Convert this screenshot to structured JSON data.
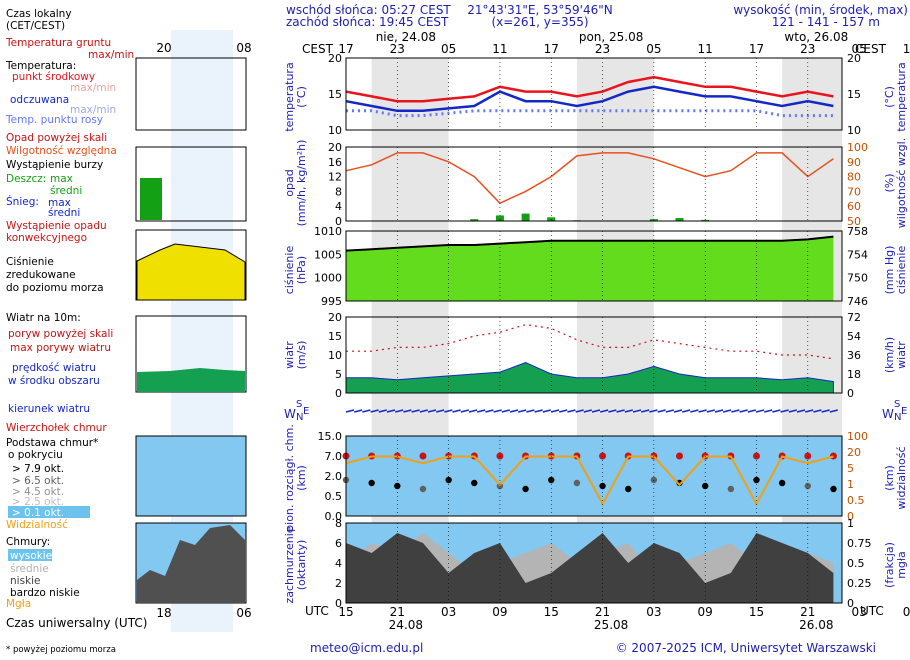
{
  "header": {
    "sunrise": "wschód słońca: 05:27 CEST",
    "sunset": "zachód słońca: 19:45 CEST",
    "coords": "21°43'31\"E, 53°59'46\"N",
    "grid": "(x=261, y=355)",
    "elev_label": "wysokość (min, środek, max)",
    "elev_values": "121 - 141 - 157 m"
  },
  "left_legend": {
    "local_time": "Czas lokalny",
    "local_time_sub": "(CET/CEST)",
    "left_hours": [
      "20",
      "02",
      "08"
    ],
    "soil_temp": "Temperatura gruntu",
    "soil_temp_sub": "max/min",
    "temperature": "Temperatura:",
    "mid_point": "punkt środkowy",
    "mid_minmax": "max/min",
    "felt": "odczuwana",
    "felt_minmax": "max/min",
    "dew": "Temp. punktu rosy",
    "precip_above": "Opad powyżej skali",
    "humidity": "Wilgotność względna",
    "storm": "Wystąpienie burzy",
    "rain": "Deszcz:",
    "rain_max": "max",
    "rain_mid": "średni",
    "snow": "Śnieg:",
    "snow_max": "max",
    "snow_mid": "średni",
    "conv1": "Wystąpienie opadu",
    "conv2": "konwekcyjnego",
    "pressure1": "Ciśnienie",
    "pressure2": "zredukowane",
    "pressure3": "do poziomu morza",
    "wind": "Wiatr na 10m:",
    "gust_above": "poryw powyżej skali",
    "gust_max": "max porywy wiatru",
    "speed1": "prędkość wiatru",
    "speed2": "w środku obszaru",
    "direction": "kierunek wiatru",
    "cb_top": "Wierzchołek chmur",
    "cloud_base1": "Podstawa chmur*",
    "cloud_base2": "o pokryciu",
    "ok79": "> 7.9 okt.",
    "ok65": "> 6.5 okt.",
    "ok45": "> 4.5 okt.",
    "ok25": "> 2.5 okt.",
    "ok01": "> 0.1 okt.",
    "visibility": "Widzialność",
    "clouds": "Chmury:",
    "high": "wysokie",
    "mid": "średnie",
    "low": "niskie",
    "vlow": "bardzo niskie",
    "fog": "Mgła",
    "utc": "Czas uniwersalny (UTC)",
    "utc_hours": [
      "18",
      "00",
      "06"
    ],
    "footnote": "* powyżej poziomu morza"
  },
  "axis_titles": {
    "temp_l1": "temperatura",
    "temp_l2": "(°C)",
    "temp_r": "(°C)",
    "temp_r2": "temperatura",
    "precip_l1": "opad",
    "precip_l2": "(mm/h, kg/m²h)",
    "precip_r1": "(%)",
    "precip_r2": "wilgotność wzgl.",
    "pres_l1": "ciśnienie",
    "pres_l2": "(hPa)",
    "pres_r1": "(mm Hg)",
    "pres_r2": "ciśnienie",
    "wind_l1": "wiatr",
    "wind_l2": "(m/s)",
    "wind_r1": "(km/h)",
    "wind_r2": "wiatr",
    "cloud_l1": "pion. rozciągł. chm.",
    "cloud_l2": "(km)",
    "cloud_r1": "(km)",
    "cloud_r2": "widzialność",
    "cov_l1": "zachmurzenie",
    "cov_l2": "(oktanty)",
    "cov_r1": "(frakcja)",
    "cov_r2": "mgła",
    "cest": "CEST",
    "utc": "UTC",
    "compass_w": "W",
    "compass_s": "S",
    "compass_n": "N",
    "compass_e": "E"
  },
  "days_top": [
    "nie, 24.08",
    "pon, 25.08",
    "wto, 26.08"
  ],
  "hours_top": [
    "17",
    "23",
    "05",
    "11",
    "17",
    "23",
    "05",
    "11",
    "17",
    "23",
    "05",
    "11",
    "17"
  ],
  "hours_bottom": [
    "15",
    "21",
    "03",
    "09",
    "15",
    "21",
    "03",
    "09",
    "15",
    "21",
    "03",
    "09",
    "15"
  ],
  "days_bottom": [
    "24.08",
    "25.08",
    "26.08"
  ],
  "footer": {
    "email": "meteo@icm.edu.pl",
    "copyright": "© 2007-2025 ICM, Uniwersytet Warszawski"
  },
  "colors": {
    "temperature": "#e8141e",
    "felt": "#1428c8",
    "dew": "#6478ff",
    "humidity": "#e8501e",
    "rain": "#14a014",
    "pressure_fill": "#64dc1e",
    "pressure_line": "#000000",
    "wind_fill": "#14a050",
    "gust": "#c81414",
    "night_band": "#e6e6e6",
    "cloud_bg": "#82c8f0",
    "visibility": "#f0a014",
    "title_blue": "#1e1eb4",
    "title_red": "#c81414"
  },
  "chart_data": [
    {
      "type": "line",
      "title": "temperatura",
      "ylabel": "(°C)",
      "ylim": [
        5,
        20
      ],
      "x_hours_utc": [
        15,
        18,
        21,
        24,
        27,
        30,
        33,
        36,
        39,
        42,
        45,
        48,
        51,
        54,
        57,
        60,
        63,
        66,
        69,
        72
      ],
      "series": [
        {
          "name": "punkt środkowy",
          "values": [
            13,
            12,
            11,
            11,
            11.5,
            12,
            14,
            13,
            13,
            12,
            13,
            15,
            16,
            15,
            14,
            14,
            13,
            12,
            13,
            12
          ]
        },
        {
          "name": "odczuwana",
          "values": [
            11,
            10,
            9,
            9,
            9.5,
            10,
            13,
            11,
            11,
            10,
            11,
            13,
            14,
            13,
            12,
            12,
            11,
            10,
            11,
            10
          ]
        },
        {
          "name": "Temp. punktu rosy",
          "values": [
            9,
            9,
            8,
            8,
            8.5,
            9,
            9,
            9,
            9,
            9,
            9,
            9,
            9,
            9,
            9,
            9,
            9,
            8,
            8,
            8
          ]
        }
      ],
      "right_ticks": [
        "10",
        "15",
        "20"
      ]
    },
    {
      "type": "line",
      "title": "opad",
      "ylabel": "(mm/h, kg/m²h)",
      "ylim": [
        0,
        20
      ],
      "y2lim": [
        50,
        100
      ],
      "y2label": "(%)",
      "series": [
        {
          "name": "Wilgotność względna",
          "values": [
            84,
            88,
            96,
            96,
            90,
            80,
            62,
            70,
            80,
            94,
            96,
            96,
            92,
            86,
            80,
            84,
            96,
            96,
            80,
            92
          ]
        },
        {
          "name": "Deszcz: średni",
          "values": [
            0,
            0,
            0,
            0,
            0,
            0.5,
            1.5,
            2,
            1,
            0.2,
            0,
            0,
            0.5,
            0.8,
            0.3,
            0,
            0,
            0,
            0,
            0
          ]
        }
      ],
      "right_ticks": [
        "50",
        "60",
        "70",
        "80",
        "90",
        "100"
      ]
    },
    {
      "type": "area",
      "title": "ciśnienie",
      "ylabel": "(hPa)",
      "ylim": [
        995,
        1020
      ],
      "y2label": "(mm Hg)",
      "right_ticks": [
        "746",
        "750",
        "754",
        "758"
      ],
      "series": [
        {
          "name": "Ciśnienie zredukowane do poziomu morza",
          "values": [
            1013,
            1013.5,
            1014,
            1014.5,
            1015,
            1015,
            1015.5,
            1016,
            1016.5,
            1016.5,
            1016.5,
            1016.5,
            1016.5,
            1016.5,
            1016.5,
            1016.5,
            1016.5,
            1016.5,
            1017,
            1018
          ]
        }
      ]
    },
    {
      "type": "area",
      "title": "wiatr",
      "ylabel": "(m/s)",
      "ylim": [
        0,
        20
      ],
      "y2label": "(km/h)",
      "right_ticks": [
        "0",
        "18",
        "36",
        "54",
        "72"
      ],
      "series": [
        {
          "name": "prędkość wiatru",
          "values": [
            4,
            4,
            3.5,
            4,
            4.5,
            5,
            5.5,
            8,
            5,
            4,
            4,
            5,
            7,
            5,
            4,
            4,
            4,
            3.5,
            4,
            3
          ]
        },
        {
          "name": "max porywy wiatru",
          "values": [
            11,
            11,
            12,
            12,
            13,
            15,
            16,
            18,
            17,
            14,
            12,
            12,
            14,
            13,
            12,
            11,
            11,
            10,
            10,
            9
          ]
        }
      ]
    },
    {
      "type": "scatter",
      "title": "pion. rozciągł. chm.",
      "ylabel": "(km)",
      "left_ticks": [
        "0.0",
        "0.5",
        "2.0",
        "7.0",
        "15.0"
      ],
      "right_ticks": [
        "0",
        "0.5",
        "1",
        "5",
        "20",
        "100"
      ],
      "series": [
        {
          "name": "Podstawa chmur > 7.9 okt.",
          "values": [
            7.5,
            7.5,
            7.5,
            7.5,
            7.5,
            7.5,
            7.5,
            7.5,
            7.5,
            7.5,
            7.5,
            7.5,
            7.5,
            7.5,
            7.5,
            7.5,
            7.5,
            7.5,
            7.5,
            7.5
          ]
        },
        {
          "name": "Widzialność",
          "values": [
            20,
            30,
            30,
            20,
            30,
            30,
            5,
            30,
            30,
            30,
            1,
            30,
            30,
            5,
            30,
            30,
            1,
            30,
            20,
            30
          ]
        }
      ]
    },
    {
      "type": "area",
      "title": "zachmurzenie",
      "ylabel": "(oktanty)",
      "ylim": [
        0,
        8
      ],
      "y2label": "(frakcja)",
      "right_ticks": [
        "0",
        "0.25",
        "0.5",
        "0.75",
        "1"
      ],
      "series": [
        {
          "name": "niskie",
          "values": [
            6,
            5,
            7,
            6,
            3,
            5,
            6,
            2,
            3,
            5,
            7,
            4,
            6,
            5,
            2,
            3,
            7,
            6,
            5,
            3
          ]
        },
        {
          "name": "średnie",
          "values": [
            4,
            6,
            5,
            7,
            5,
            3,
            4,
            5,
            6,
            4,
            5,
            6,
            3,
            4,
            5,
            6,
            4,
            3,
            5,
            4
          ]
        }
      ]
    }
  ]
}
